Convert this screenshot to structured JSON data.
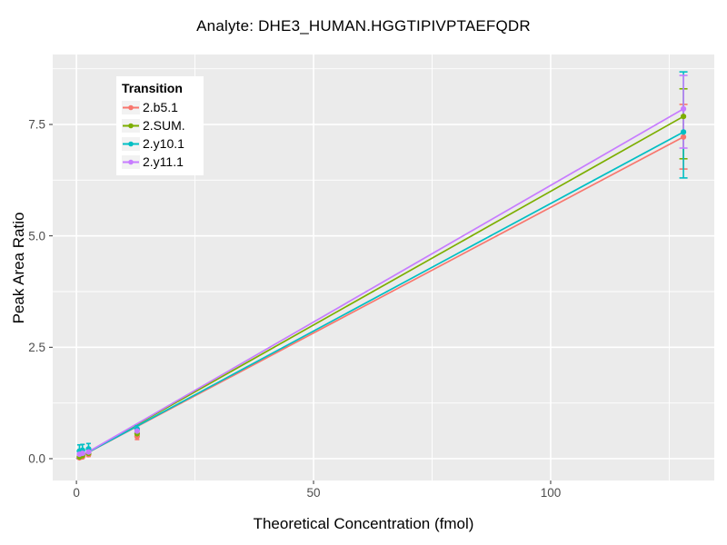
{
  "chart_data": {
    "type": "line",
    "title": "Analyte: DHE3_HUMAN.HGGTIPIVPTAEFQDR",
    "xlabel": "Theoretical Concentration (fmol)",
    "ylabel": "Peak Area Ratio",
    "xlim": [
      -5,
      134.5
    ],
    "ylim": [
      -0.49,
      9.07
    ],
    "x_ticks": [
      {
        "value": 0,
        "label": "0"
      },
      {
        "value": 50,
        "label": "50"
      },
      {
        "value": 100,
        "label": "100"
      }
    ],
    "y_ticks": [
      {
        "value": 0.0,
        "label": "0.0"
      },
      {
        "value": 2.5,
        "label": "2.5"
      },
      {
        "value": 5.0,
        "label": "5.0"
      },
      {
        "value": 7.5,
        "label": "7.5"
      }
    ],
    "x_minor_gridlines": [
      25,
      75,
      125
    ],
    "y_minor_gridlines": [
      1.25,
      3.75,
      6.25,
      8.75
    ],
    "grid": "on",
    "panel_background": "#EBEBEB",
    "gridline_color": "#FFFFFF",
    "tick_label_color": "#4D4D4D",
    "legend": {
      "title": "Transition",
      "position": "inside-top-left",
      "background": "#FFFFFF",
      "key_fill": "#F2F2F2"
    },
    "series": [
      {
        "name": "2.b5.1",
        "color": "#F8766D",
        "regression_line": {
          "x": [
            0,
            128
          ],
          "y": [
            0,
            7.22
          ]
        },
        "points": [
          {
            "x": 0.64,
            "y": 0.02,
            "lo": 0.0,
            "hi": 0.06,
            "cap": 2.5
          },
          {
            "x": 1.28,
            "y": 0.04,
            "lo": 0.01,
            "hi": 0.08,
            "cap": 2.5
          },
          {
            "x": 2.56,
            "y": 0.09,
            "lo": 0.05,
            "hi": 0.13,
            "cap": 2.5
          },
          {
            "x": 12.8,
            "y": 0.5,
            "lo": 0.43,
            "hi": 0.57,
            "cap": 2.5
          },
          {
            "x": 128,
            "y": 7.22,
            "lo": 6.5,
            "hi": 7.95,
            "cap": 4.5
          }
        ]
      },
      {
        "name": "2.SUM.",
        "color": "#7CAE00",
        "regression_line": {
          "x": [
            0,
            128
          ],
          "y": [
            0,
            7.68
          ]
        },
        "points": [
          {
            "x": 0.64,
            "y": 0.04,
            "lo": 0.01,
            "hi": 0.08,
            "cap": 2.5
          },
          {
            "x": 1.28,
            "y": 0.07,
            "lo": 0.03,
            "hi": 0.11,
            "cap": 2.5
          },
          {
            "x": 2.56,
            "y": 0.12,
            "lo": 0.07,
            "hi": 0.17,
            "cap": 2.5
          },
          {
            "x": 12.8,
            "y": 0.56,
            "lo": 0.48,
            "hi": 0.64,
            "cap": 2.5
          },
          {
            "x": 128,
            "y": 7.68,
            "lo": 6.73,
            "hi": 8.3,
            "cap": 4.5
          }
        ]
      },
      {
        "name": "2.y10.1",
        "color": "#00BFC4",
        "regression_line": {
          "x": [
            0,
            128
          ],
          "y": [
            0,
            7.33
          ]
        },
        "points": [
          {
            "x": 0.64,
            "y": 0.17,
            "lo": 0.04,
            "hi": 0.31,
            "cap": 2.5
          },
          {
            "x": 1.28,
            "y": 0.19,
            "lo": 0.07,
            "hi": 0.32,
            "cap": 2.5
          },
          {
            "x": 2.56,
            "y": 0.22,
            "lo": 0.1,
            "hi": 0.34,
            "cap": 2.5
          },
          {
            "x": 12.8,
            "y": 0.66,
            "lo": 0.57,
            "hi": 0.74,
            "cap": 2.5
          },
          {
            "x": 128,
            "y": 7.33,
            "lo": 6.3,
            "hi": 8.68,
            "cap": 4.5
          }
        ]
      },
      {
        "name": "2.y11.1",
        "color": "#C77CFF",
        "regression_line": {
          "x": [
            0,
            128
          ],
          "y": [
            0,
            7.85
          ]
        },
        "points": [
          {
            "x": 0.64,
            "y": 0.1,
            "lo": 0.05,
            "hi": 0.16,
            "cap": 2.5
          },
          {
            "x": 1.28,
            "y": 0.12,
            "lo": 0.07,
            "hi": 0.18,
            "cap": 2.5
          },
          {
            "x": 2.56,
            "y": 0.15,
            "lo": 0.09,
            "hi": 0.21,
            "cap": 2.5
          },
          {
            "x": 12.8,
            "y": 0.62,
            "lo": 0.54,
            "hi": 0.7,
            "cap": 2.5
          },
          {
            "x": 128,
            "y": 7.85,
            "lo": 6.97,
            "hi": 8.6,
            "cap": 4.5
          }
        ]
      }
    ]
  }
}
